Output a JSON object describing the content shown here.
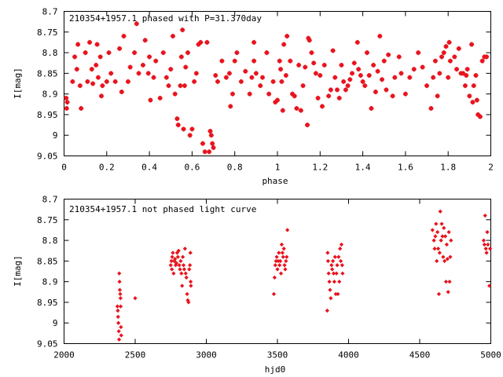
{
  "colors": {
    "points": "#e8141e",
    "axes": "#000000",
    "background": "#ffffff"
  },
  "chart_data": [
    {
      "type": "scatter",
      "title": "210354+1957.1 phased with P=31.370day",
      "xlabel": "phase",
      "ylabel": "I[mag]",
      "xlim": [
        0,
        2
      ],
      "ylim": [
        9.05,
        8.7
      ],
      "y_inverted": true,
      "xticks": [
        0,
        0.2,
        0.4,
        0.6,
        0.8,
        1,
        1.2,
        1.4,
        1.6,
        1.8,
        2
      ],
      "yticks": [
        8.7,
        8.75,
        8.8,
        8.85,
        8.9,
        8.95,
        9,
        9.05
      ],
      "xtick_labels": [
        "0",
        "0.2",
        "0.4",
        "0.6",
        "0.8",
        "1",
        "1.2",
        "1.4",
        "1.6",
        "1.8",
        "2"
      ],
      "ytick_labels": [
        "8.7",
        "8.75",
        "8.8",
        "8.85",
        "8.9",
        "8.95",
        "9",
        "9.05"
      ],
      "grid": false,
      "marker": "plus",
      "points": [
        [
          0.01,
          8.91
        ],
        [
          0.012,
          8.935
        ],
        [
          0.015,
          8.92
        ],
        [
          0.04,
          8.87
        ],
        [
          0.05,
          8.81
        ],
        [
          0.06,
          8.84
        ],
        [
          0.065,
          8.78
        ],
        [
          0.075,
          8.88
        ],
        [
          0.08,
          8.935
        ],
        [
          0.1,
          8.8
        ],
        [
          0.11,
          8.87
        ],
        [
          0.12,
          8.775
        ],
        [
          0.13,
          8.84
        ],
        [
          0.135,
          8.875
        ],
        [
          0.15,
          8.83
        ],
        [
          0.155,
          8.78
        ],
        [
          0.16,
          8.86
        ],
        [
          0.17,
          8.81
        ],
        [
          0.175,
          8.905
        ],
        [
          0.18,
          8.88
        ],
        [
          0.2,
          8.87
        ],
        [
          0.21,
          8.8
        ],
        [
          0.22,
          8.85
        ],
        [
          0.24,
          8.87
        ],
        [
          0.26,
          8.79
        ],
        [
          0.27,
          8.895
        ],
        [
          0.28,
          8.76
        ],
        [
          0.3,
          8.87
        ],
        [
          0.31,
          8.835
        ],
        [
          0.33,
          8.8
        ],
        [
          0.34,
          8.73
        ],
        [
          0.35,
          8.85
        ],
        [
          0.37,
          8.83
        ],
        [
          0.38,
          8.77
        ],
        [
          0.395,
          8.85
        ],
        [
          0.4,
          8.81
        ],
        [
          0.405,
          8.915
        ],
        [
          0.42,
          8.86
        ],
        [
          0.43,
          8.82
        ],
        [
          0.45,
          8.91
        ],
        [
          0.465,
          8.8
        ],
        [
          0.48,
          8.86
        ],
        [
          0.49,
          8.88
        ],
        [
          0.5,
          8.84
        ],
        [
          0.51,
          8.76
        ],
        [
          0.52,
          8.9
        ],
        [
          0.53,
          8.96
        ],
        [
          0.535,
          8.975
        ],
        [
          0.545,
          8.88
        ],
        [
          0.55,
          8.81
        ],
        [
          0.555,
          8.745
        ],
        [
          0.56,
          8.985
        ],
        [
          0.565,
          8.88
        ],
        [
          0.57,
          8.835
        ],
        [
          0.58,
          8.8
        ],
        [
          0.59,
          9.0
        ],
        [
          0.6,
          8.985
        ],
        [
          0.61,
          8.87
        ],
        [
          0.62,
          8.85
        ],
        [
          0.63,
          8.78
        ],
        [
          0.64,
          8.775
        ],
        [
          0.65,
          9.02
        ],
        [
          0.66,
          9.04
        ],
        [
          0.67,
          8.775
        ],
        [
          0.68,
          9.04
        ],
        [
          0.685,
          8.99
        ],
        [
          0.69,
          9.0
        ],
        [
          0.695,
          9.02
        ],
        [
          0.7,
          9.03
        ],
        [
          0.71,
          8.855
        ],
        [
          0.72,
          8.87
        ],
        [
          0.74,
          8.82
        ],
        [
          0.76,
          8.86
        ],
        [
          0.775,
          8.85
        ],
        [
          0.78,
          8.93
        ],
        [
          0.79,
          8.9
        ],
        [
          0.8,
          8.82
        ],
        [
          0.81,
          8.8
        ],
        [
          0.83,
          8.87
        ],
        [
          0.85,
          8.845
        ],
        [
          0.87,
          8.9
        ],
        [
          0.88,
          8.86
        ],
        [
          0.89,
          8.775
        ],
        [
          0.89,
          8.82
        ],
        [
          0.9,
          8.85
        ],
        [
          0.92,
          8.88
        ],
        [
          0.93,
          8.86
        ],
        [
          0.95,
          8.8
        ],
        [
          0.96,
          8.9
        ],
        [
          0.98,
          8.87
        ],
        [
          0.99,
          8.92
        ],
        [
          1.0,
          8.915
        ],
        [
          1.01,
          8.82
        ],
        [
          1.015,
          8.84
        ],
        [
          1.02,
          8.87
        ],
        [
          1.025,
          8.94
        ],
        [
          1.03,
          8.78
        ],
        [
          1.04,
          8.855
        ],
        [
          1.045,
          8.76
        ],
        [
          1.06,
          8.82
        ],
        [
          1.07,
          8.9
        ],
        [
          1.08,
          8.905
        ],
        [
          1.09,
          8.935
        ],
        [
          1.1,
          8.83
        ],
        [
          1.11,
          8.94
        ],
        [
          1.12,
          8.88
        ],
        [
          1.13,
          8.835
        ],
        [
          1.14,
          8.975
        ],
        [
          1.145,
          8.765
        ],
        [
          1.15,
          8.77
        ],
        [
          1.16,
          8.8
        ],
        [
          1.17,
          8.825
        ],
        [
          1.18,
          8.85
        ],
        [
          1.19,
          8.91
        ],
        [
          1.2,
          8.855
        ],
        [
          1.21,
          8.93
        ],
        [
          1.22,
          8.83
        ],
        [
          1.24,
          8.905
        ],
        [
          1.25,
          8.89
        ],
        [
          1.26,
          8.795
        ],
        [
          1.27,
          8.86
        ],
        [
          1.28,
          8.89
        ],
        [
          1.29,
          8.91
        ],
        [
          1.3,
          8.83
        ],
        [
          1.31,
          8.87
        ],
        [
          1.32,
          8.89
        ],
        [
          1.33,
          8.88
        ],
        [
          1.34,
          8.865
        ],
        [
          1.35,
          8.85
        ],
        [
          1.36,
          8.825
        ],
        [
          1.375,
          8.775
        ],
        [
          1.38,
          8.84
        ],
        [
          1.39,
          8.855
        ],
        [
          1.4,
          8.87
        ],
        [
          1.41,
          8.88
        ],
        [
          1.42,
          8.8
        ],
        [
          1.43,
          8.855
        ],
        [
          1.44,
          8.935
        ],
        [
          1.45,
          8.83
        ],
        [
          1.46,
          8.895
        ],
        [
          1.47,
          8.845
        ],
        [
          1.48,
          8.76
        ],
        [
          1.49,
          8.865
        ],
        [
          1.5,
          8.82
        ],
        [
          1.51,
          8.89
        ],
        [
          1.52,
          8.805
        ],
        [
          1.54,
          8.905
        ],
        [
          1.55,
          8.86
        ],
        [
          1.57,
          8.81
        ],
        [
          1.58,
          8.85
        ],
        [
          1.6,
          8.9
        ],
        [
          1.62,
          8.86
        ],
        [
          1.64,
          8.84
        ],
        [
          1.66,
          8.8
        ],
        [
          1.68,
          8.835
        ],
        [
          1.7,
          8.88
        ],
        [
          1.72,
          8.935
        ],
        [
          1.73,
          8.86
        ],
        [
          1.74,
          8.82
        ],
        [
          1.75,
          8.905
        ],
        [
          1.76,
          8.85
        ],
        [
          1.77,
          8.81
        ],
        [
          1.78,
          8.8
        ],
        [
          1.79,
          8.785
        ],
        [
          1.8,
          8.86
        ],
        [
          1.805,
          8.775
        ],
        [
          1.81,
          8.82
        ],
        [
          1.83,
          8.81
        ],
        [
          1.84,
          8.84
        ],
        [
          1.85,
          8.79
        ],
        [
          1.86,
          8.85
        ],
        [
          1.87,
          8.85
        ],
        [
          1.88,
          8.88
        ],
        [
          1.885,
          8.855
        ],
        [
          1.89,
          8.84
        ],
        [
          1.9,
          8.905
        ],
        [
          1.91,
          8.78
        ],
        [
          1.915,
          8.92
        ],
        [
          1.92,
          8.88
        ],
        [
          1.93,
          8.855
        ],
        [
          1.935,
          8.915
        ],
        [
          1.94,
          8.95
        ],
        [
          1.95,
          8.955
        ],
        [
          1.96,
          8.82
        ],
        [
          1.97,
          8.81
        ],
        [
          1.98,
          8.81
        ]
      ]
    },
    {
      "type": "scatter",
      "title": "210354+1957.1 not phased light curve",
      "xlabel": "hjd0",
      "ylabel": "I[mag]",
      "xlim": [
        2000,
        5000
      ],
      "ylim": [
        9.05,
        8.7
      ],
      "y_inverted": true,
      "xticks": [
        2000,
        2500,
        3000,
        3500,
        4000,
        4500,
        5000
      ],
      "yticks": [
        8.7,
        8.75,
        8.8,
        8.85,
        8.9,
        8.95,
        9,
        9.05
      ],
      "xtick_labels": [
        "2000",
        "2500",
        "3000",
        "3500",
        "4000",
        "4500",
        "5000"
      ],
      "ytick_labels": [
        "8.7",
        "8.75",
        "8.8",
        "8.85",
        "8.9",
        "8.95",
        "9",
        "9.05"
      ],
      "grid": false,
      "marker": "diamond",
      "points": [
        [
          2375,
          8.96
        ],
        [
          2378,
          8.97
        ],
        [
          2380,
          8.985
        ],
        [
          2382,
          9.0
        ],
        [
          2385,
          9.02
        ],
        [
          2387,
          9.04
        ],
        [
          2388,
          8.88
        ],
        [
          2390,
          8.9
        ],
        [
          2392,
          8.92
        ],
        [
          2395,
          8.93
        ],
        [
          2397,
          8.94
        ],
        [
          2398,
          8.96
        ],
        [
          2400,
          9.01
        ],
        [
          2402,
          9.03
        ],
        [
          2500,
          8.94
        ],
        [
          2750,
          8.86
        ],
        [
          2755,
          8.85
        ],
        [
          2758,
          8.87
        ],
        [
          2760,
          8.84
        ],
        [
          2765,
          8.83
        ],
        [
          2770,
          8.88
        ],
        [
          2775,
          8.85
        ],
        [
          2780,
          8.845
        ],
        [
          2785,
          8.86
        ],
        [
          2790,
          8.855
        ],
        [
          2795,
          8.83
        ],
        [
          2800,
          8.84
        ],
        [
          2805,
          8.825
        ],
        [
          2810,
          8.86
        ],
        [
          2815,
          8.87
        ],
        [
          2820,
          8.85
        ],
        [
          2825,
          8.88
        ],
        [
          2830,
          8.91
        ],
        [
          2835,
          8.84
        ],
        [
          2840,
          8.86
        ],
        [
          2845,
          8.87
        ],
        [
          2850,
          8.82
        ],
        [
          2855,
          8.88
        ],
        [
          2860,
          8.89
        ],
        [
          2865,
          8.93
        ],
        [
          2870,
          8.945
        ],
        [
          2875,
          8.95
        ],
        [
          2880,
          8.87
        ],
        [
          2885,
          8.86
        ],
        [
          2888,
          8.83
        ],
        [
          2890,
          8.9
        ],
        [
          2892,
          8.91
        ],
        [
          3475,
          8.93
        ],
        [
          3480,
          8.89
        ],
        [
          3485,
          8.86
        ],
        [
          3490,
          8.85
        ],
        [
          3495,
          8.84
        ],
        [
          3500,
          8.87
        ],
        [
          3505,
          8.85
        ],
        [
          3510,
          8.83
        ],
        [
          3515,
          8.86
        ],
        [
          3520,
          8.85
        ],
        [
          3525,
          8.88
        ],
        [
          3530,
          8.81
        ],
        [
          3535,
          8.83
        ],
        [
          3540,
          8.84
        ],
        [
          3545,
          8.82
        ],
        [
          3550,
          8.86
        ],
        [
          3555,
          8.87
        ],
        [
          3560,
          8.85
        ],
        [
          3565,
          8.84
        ],
        [
          3570,
          8.775
        ],
        [
          3850,
          8.97
        ],
        [
          3853,
          8.83
        ],
        [
          3856,
          8.85
        ],
        [
          3860,
          8.88
        ],
        [
          3865,
          8.9
        ],
        [
          3870,
          8.92
        ],
        [
          3875,
          8.94
        ],
        [
          3880,
          8.86
        ],
        [
          3885,
          8.87
        ],
        [
          3890,
          8.85
        ],
        [
          3895,
          8.88
        ],
        [
          3900,
          8.9
        ],
        [
          3905,
          8.84
        ],
        [
          3910,
          8.93
        ],
        [
          3915,
          8.88
        ],
        [
          3920,
          8.86
        ],
        [
          3925,
          8.93
        ],
        [
          3930,
          8.84
        ],
        [
          3935,
          8.9
        ],
        [
          3940,
          8.82
        ],
        [
          3945,
          8.85
        ],
        [
          3950,
          8.81
        ],
        [
          3955,
          8.86
        ],
        [
          3958,
          8.88
        ],
        [
          4590,
          8.775
        ],
        [
          4600,
          8.8
        ],
        [
          4605,
          8.82
        ],
        [
          4610,
          8.79
        ],
        [
          4615,
          8.76
        ],
        [
          4620,
          8.85
        ],
        [
          4625,
          8.78
        ],
        [
          4630,
          8.82
        ],
        [
          4635,
          8.93
        ],
        [
          4640,
          8.83
        ],
        [
          4645,
          8.73
        ],
        [
          4650,
          8.8
        ],
        [
          4655,
          8.76
        ],
        [
          4660,
          8.79
        ],
        [
          4665,
          8.84
        ],
        [
          4670,
          8.77
        ],
        [
          4675,
          8.85
        ],
        [
          4680,
          8.79
        ],
        [
          4685,
          8.9
        ],
        [
          4690,
          8.81
        ],
        [
          4695,
          8.845
        ],
        [
          4700,
          8.925
        ],
        [
          4705,
          8.78
        ],
        [
          4710,
          8.9
        ],
        [
          4715,
          8.84
        ],
        [
          4720,
          8.8
        ],
        [
          4950,
          8.8
        ],
        [
          4955,
          8.81
        ],
        [
          4960,
          8.74
        ],
        [
          4965,
          8.82
        ],
        [
          4970,
          8.83
        ],
        [
          4975,
          8.78
        ],
        [
          4980,
          8.81
        ],
        [
          4990,
          8.91
        ],
        [
          4995,
          8.82
        ]
      ]
    }
  ]
}
